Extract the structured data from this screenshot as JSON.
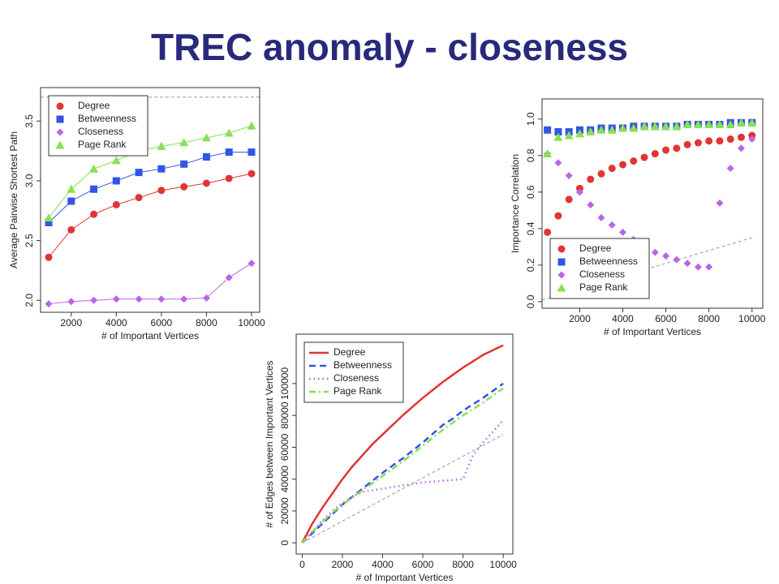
{
  "title": "TREC anomaly - closeness",
  "chart_data": [
    {
      "type": "line",
      "xlabel": "# of Important Vertices",
      "ylabel": "Average Pairwise Shortest Path",
      "x": [
        1000,
        2000,
        3000,
        4000,
        5000,
        6000,
        7000,
        8000,
        9000,
        10000
      ],
      "series": [
        {
          "name": "Degree",
          "color": "#e03535",
          "marker": "circle",
          "values": [
            2.36,
            2.59,
            2.72,
            2.8,
            2.86,
            2.92,
            2.95,
            2.98,
            3.02,
            3.06
          ]
        },
        {
          "name": "Betweenness",
          "color": "#3355e6",
          "marker": "square",
          "values": [
            2.65,
            2.83,
            2.93,
            3.0,
            3.07,
            3.1,
            3.14,
            3.2,
            3.24,
            3.24
          ]
        },
        {
          "name": "Closeness",
          "color": "#b866e8",
          "marker": "diamond",
          "values": [
            1.97,
            1.99,
            2.0,
            2.01,
            2.01,
            2.01,
            2.01,
            2.02,
            2.19,
            2.31
          ]
        },
        {
          "name": "Page Rank",
          "color": "#88e055",
          "marker": "triangle",
          "values": [
            2.69,
            2.93,
            3.1,
            3.17,
            3.25,
            3.29,
            3.32,
            3.36,
            3.4,
            3.46
          ]
        }
      ],
      "hline": 3.7,
      "xlim": [
        640,
        10360
      ],
      "ylim": [
        1.9,
        3.78
      ],
      "xticks": [
        2000,
        4000,
        6000,
        8000,
        10000
      ],
      "yticks": [
        {
          "value": 2,
          "label": "2.0"
        },
        2.5,
        {
          "value": 3,
          "label": "3.0"
        },
        3.5
      ],
      "legend": "upper left"
    },
    {
      "type": "scatter",
      "xlabel": "# of Important Vertices",
      "ylabel": "Importance Correlation",
      "x": [
        500,
        1000,
        1500,
        2000,
        2500,
        3000,
        3500,
        4000,
        4500,
        5000,
        5500,
        6000,
        6500,
        7000,
        7500,
        8000,
        8500,
        9000,
        9500,
        10000
      ],
      "series": [
        {
          "name": "Degree",
          "color": "#e03535",
          "marker": "circle",
          "values": [
            0.38,
            0.47,
            0.56,
            0.62,
            0.67,
            0.7,
            0.73,
            0.75,
            0.77,
            0.79,
            0.81,
            0.83,
            0.84,
            0.86,
            0.87,
            0.88,
            0.88,
            0.89,
            0.9,
            0.91
          ]
        },
        {
          "name": "Betweenness",
          "color": "#3355e6",
          "marker": "square",
          "values": [
            0.94,
            0.93,
            0.93,
            0.94,
            0.94,
            0.95,
            0.95,
            0.95,
            0.96,
            0.96,
            0.96,
            0.96,
            0.96,
            0.97,
            0.97,
            0.97,
            0.97,
            0.98,
            0.98,
            0.98
          ]
        },
        {
          "name": "Closeness",
          "color": "#b866e8",
          "marker": "diamond",
          "values": [
            0.81,
            0.76,
            0.69,
            0.6,
            0.53,
            0.46,
            0.42,
            0.38,
            0.34,
            0.3,
            0.27,
            0.25,
            0.23,
            0.21,
            0.19,
            0.19,
            0.54,
            0.73,
            0.84,
            0.89
          ]
        },
        {
          "name": "Page Rank",
          "color": "#88e055",
          "marker": "triangle",
          "values": [
            0.81,
            0.9,
            0.91,
            0.92,
            0.93,
            0.94,
            0.94,
            0.95,
            0.95,
            0.96,
            0.96,
            0.96,
            0.96,
            0.97,
            0.97,
            0.97,
            0.97,
            0.97,
            0.98,
            0.98
          ]
        }
      ],
      "reference_line": {
        "x": [
          0,
          10000
        ],
        "y": [
          0,
          0.35
        ]
      },
      "xlim": [
        250,
        10500
      ],
      "ylim": [
        -0.036,
        1.11
      ],
      "xticks": [
        2000,
        4000,
        6000,
        8000,
        10000
      ],
      "yticks": [
        {
          "value": 0,
          "label": "0.0"
        },
        0.2,
        0.4,
        0.6,
        0.8,
        {
          "value": 1,
          "label": "1.0"
        }
      ],
      "legend": "lower left"
    },
    {
      "type": "line",
      "xlabel": "# of Important Vertices",
      "ylabel": "# of Edges between Important Vertices",
      "x": [
        0,
        500,
        1000,
        1500,
        2000,
        2500,
        3000,
        3500,
        4000,
        4500,
        5000,
        5500,
        6000,
        6500,
        7000,
        7500,
        8000,
        8500,
        9000,
        9500,
        10000
      ],
      "series": [
        {
          "name": "Degree",
          "color": "#e03535",
          "dash": "solid",
          "values": [
            0,
            12000,
            22000,
            31000,
            40000,
            48000,
            55000,
            62000,
            68000,
            74000,
            80000,
            85500,
            91000,
            96000,
            101000,
            105500,
            110000,
            114000,
            118000,
            121000,
            124000
          ]
        },
        {
          "name": "Betweenness",
          "color": "#3355e6",
          "dash": "dashed",
          "values": [
            0,
            6000,
            12000,
            18000,
            24000,
            29000,
            34000,
            39000,
            44000,
            48500,
            53000,
            58000,
            63000,
            68500,
            74000,
            78000,
            83000,
            87000,
            91000,
            95500,
            100000
          ]
        },
        {
          "name": "Closeness",
          "color": "#b866e8",
          "dash": "dotted",
          "values": [
            0,
            7000,
            14000,
            20000,
            25000,
            29000,
            32000,
            33000,
            34000,
            35000,
            36000,
            37000,
            38000,
            38500,
            39000,
            39500,
            40000,
            55000,
            63000,
            70000,
            77000
          ]
        },
        {
          "name": "Page Rank",
          "color": "#88e055",
          "dash": "dotdash",
          "values": [
            0,
            7000,
            13000,
            19000,
            24000,
            28500,
            33000,
            37500,
            42000,
            46500,
            51000,
            56000,
            61000,
            66000,
            71000,
            75500,
            80000,
            84000,
            88000,
            92500,
            97000
          ]
        }
      ],
      "reference_line": {
        "x": [
          0,
          10000
        ],
        "y": [
          0,
          68000
        ]
      },
      "xlim": [
        -300,
        10480
      ],
      "ylim": [
        -7000,
        131000
      ],
      "xticks": [
        0,
        2000,
        4000,
        6000,
        8000,
        10000
      ],
      "yticks": [
        0,
        20000,
        40000,
        60000,
        80000,
        100000
      ],
      "legend": "upper left"
    }
  ]
}
